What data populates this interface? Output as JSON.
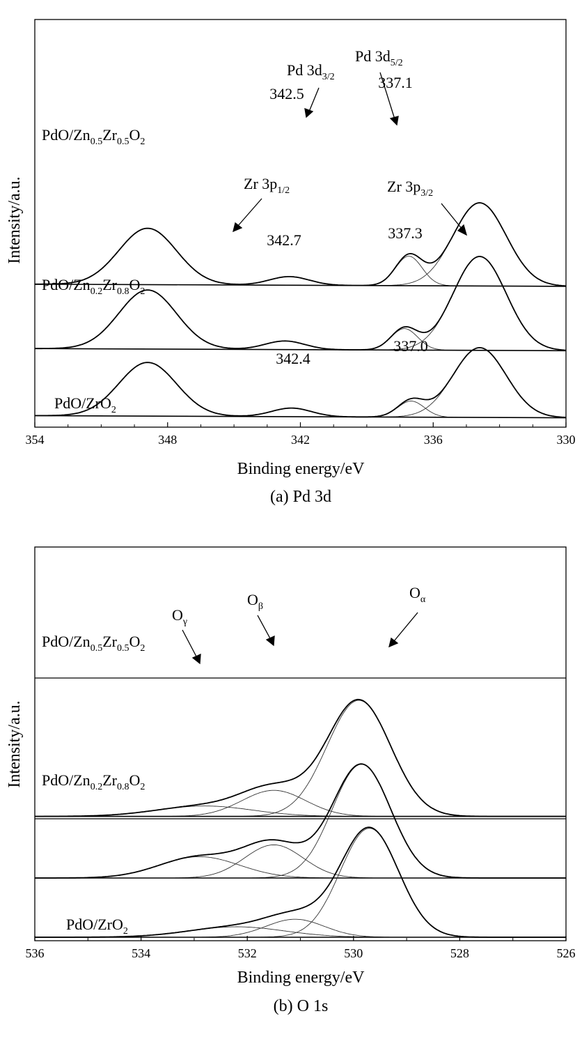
{
  "chart_data": [
    {
      "type": "line",
      "caption": "(a) Pd 3d",
      "xlabel": "Binding energy/eV",
      "ylabel": "Intensity/a.u.",
      "xlim": [
        354,
        330
      ],
      "xticks": [
        354,
        348,
        342,
        336,
        330
      ],
      "grid": false,
      "series": [
        {
          "name": "PdO/Zn0.5Zr0.5O2",
          "label": {
            "base": "PdO/Zn",
            "s1": "0.5",
            "mid": "Zr",
            "s2": "0.5",
            "end": "O",
            "s3": "2"
          },
          "offset": 2.45,
          "baseline": [
            0.02,
            -0.02
          ],
          "peaks": [
            {
              "center": 348.9,
              "height": 1.05,
              "sigma": 1.3
            },
            {
              "center": 342.5,
              "height": 0.16,
              "sigma": 0.9
            },
            {
              "center": 337.1,
              "height": 0.55,
              "sigma": 0.6
            },
            {
              "center": 333.9,
              "height": 1.55,
              "sigma": 1.2
            }
          ]
        },
        {
          "name": "PdO/Zn0.2Zr0.8O2",
          "label": {
            "base": "PdO/Zn",
            "s1": "0.2",
            "mid": "Zr",
            "s2": "0.8",
            "end": "O",
            "s3": "2"
          },
          "offset": 1.25,
          "baseline": [
            0.02,
            -0.02
          ],
          "peaks": [
            {
              "center": 348.9,
              "height": 1.1,
              "sigma": 1.3
            },
            {
              "center": 342.7,
              "height": 0.16,
              "sigma": 0.9
            },
            {
              "center": 337.3,
              "height": 0.4,
              "sigma": 0.6
            },
            {
              "center": 333.9,
              "height": 1.75,
              "sigma": 1.2
            }
          ]
        },
        {
          "name": "PdO/ZrO2",
          "label": {
            "base": "PdO/ZrO",
            "s1": "2",
            "mid": "",
            "s2": "",
            "end": "",
            "s3": ""
          },
          "offset": 0.0,
          "baseline": [
            0.02,
            -0.02
          ],
          "peaks": [
            {
              "center": 348.9,
              "height": 1.0,
              "sigma": 1.3
            },
            {
              "center": 342.4,
              "height": 0.16,
              "sigma": 0.9
            },
            {
              "center": 337.0,
              "height": 0.3,
              "sigma": 0.6
            },
            {
              "center": 333.9,
              "height": 1.3,
              "sigma": 1.2
            }
          ]
        }
      ],
      "annotations": [
        {
          "text": "342.5",
          "x": 342.5,
          "series": 0
        },
        {
          "text": "337.1",
          "x": 337.1,
          "series": 0
        },
        {
          "text": "342.7",
          "x": 342.7,
          "series": 1
        },
        {
          "text": "337.3",
          "x": 337.3,
          "series": 1
        },
        {
          "text": "342.4",
          "x": 342.4,
          "series": 2
        },
        {
          "text": "337.0",
          "x": 337.0,
          "series": 2
        }
      ],
      "peak_labels": [
        {
          "main": "Pd 3d",
          "sub": "3/2"
        },
        {
          "main": "Pd 3d",
          "sub": "5/2"
        },
        {
          "main": "Zr 3p",
          "sub": "1/2"
        },
        {
          "main": "Zr 3p",
          "sub": "3/2"
        }
      ]
    },
    {
      "type": "line",
      "caption": "(b) O 1s",
      "xlabel": "Binding energy/eV",
      "ylabel": "Intensity/a.u.",
      "xlim": [
        536,
        526
      ],
      "xticks": [
        536,
        534,
        532,
        530,
        528,
        526
      ],
      "grid": false,
      "series": [
        {
          "name": "PdO/Zn0.5Zr0.5O2",
          "label": {
            "base": "PdO/Zn",
            "s1": "0.5",
            "mid": "Zr",
            "s2": "0.5",
            "end": "O",
            "s3": "2"
          },
          "offset": 2.55,
          "baseline": [
            0.0,
            0.0
          ],
          "peaks": [
            {
              "center": 532.8,
              "height": 0.22,
              "sigma": 0.9
            },
            {
              "center": 531.5,
              "height": 0.55,
              "sigma": 0.6
            },
            {
              "center": 529.9,
              "height": 2.45,
              "sigma": 0.6
            }
          ]
        },
        {
          "name": "PdO/Zn0.2Zr0.8O2",
          "label": {
            "base": "PdO/Zn",
            "s1": "0.2",
            "mid": "Zr",
            "s2": "0.8",
            "end": "O",
            "s3": "2"
          },
          "offset": 1.25,
          "baseline": [
            0.0,
            0.0
          ],
          "peaks": [
            {
              "center": 532.9,
              "height": 0.45,
              "sigma": 0.75
            },
            {
              "center": 531.5,
              "height": 0.7,
              "sigma": 0.55
            },
            {
              "center": 529.85,
              "height": 2.4,
              "sigma": 0.55
            }
          ]
        },
        {
          "name": "PdO/ZrO2",
          "label": {
            "base": "PdO/ZrO",
            "s1": "2",
            "mid": "",
            "s2": "",
            "end": "",
            "s3": ""
          },
          "offset": 0.0,
          "baseline": [
            0.0,
            0.0
          ],
          "peaks": [
            {
              "center": 532.2,
              "height": 0.22,
              "sigma": 0.9
            },
            {
              "center": 531.1,
              "height": 0.38,
              "sigma": 0.55
            },
            {
              "center": 529.7,
              "height": 2.3,
              "sigma": 0.55
            }
          ]
        }
      ],
      "peak_labels": [
        {
          "main": "O",
          "sub": "γ"
        },
        {
          "main": "O",
          "sub": "β"
        },
        {
          "main": "O",
          "sub": "α"
        }
      ]
    }
  ]
}
